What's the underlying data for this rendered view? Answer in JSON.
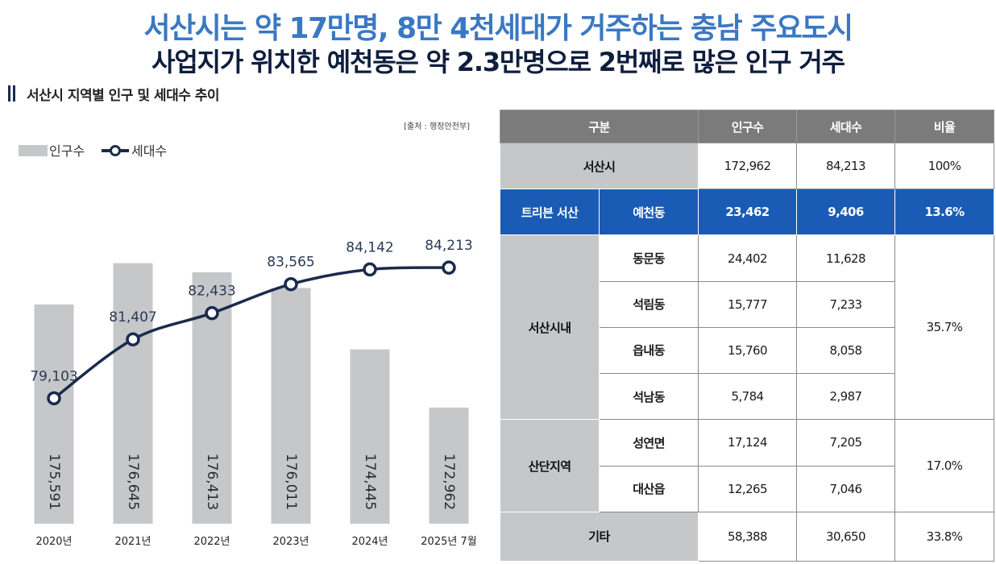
{
  "headline": {
    "line1": "서산시는 약 17만명, 8만 4천세대가 거주하는 충남 주요도시",
    "line2": "사업지가 위치한 예천동은 약 2.3만명으로 2번째로 많은 인구 거주"
  },
  "section_title": "서산시 지역별 인구 및 세대수 추이",
  "source_note": "[출처 : 행정안전부]",
  "colors": {
    "bar": "#c6c7c9",
    "line": "#1b2a4e",
    "headline_blue": "#3a78c3",
    "highlight": "#1a5cb5"
  },
  "chart_data": {
    "type": "bar",
    "categories": [
      "2020년",
      "2021년",
      "2022년",
      "2023년",
      "2024년",
      "2025년 7월"
    ],
    "series": [
      {
        "name": "인구수",
        "type": "bar",
        "values": [
          175591,
          176645,
          176413,
          176011,
          174445,
          172962
        ]
      },
      {
        "name": "세대수",
        "type": "line",
        "values": [
          79103,
          81407,
          82433,
          83565,
          84142,
          84213
        ]
      }
    ],
    "bar_labels": [
      "175,591",
      "176,645",
      "176,413",
      "176,011",
      "174,445",
      "172,962"
    ],
    "line_labels": [
      "79,103",
      "81,407",
      "82,433",
      "83,565",
      "84,142",
      "84,213"
    ],
    "legend": [
      "인구수",
      "세대수"
    ],
    "legend_position": "top-left",
    "bar_ylim": [
      170000,
      177500
    ],
    "line_ylim": [
      74200,
      86800
    ],
    "grid": false
  },
  "table": {
    "headers": [
      "구분",
      "인구수",
      "세대수",
      "비율"
    ],
    "rows": {
      "seosan": {
        "label": "서산시",
        "pop": "172,962",
        "hh": "84,213",
        "ratio": "100%"
      },
      "highlight": {
        "group": "트리븐 서산",
        "label": "예천동",
        "pop": "23,462",
        "hh": "9,406",
        "ratio": "13.6%"
      },
      "inner": {
        "group": "서산시내",
        "ratio": "35.7%",
        "items": [
          {
            "label": "동문동",
            "pop": "24,402",
            "hh": "11,628"
          },
          {
            "label": "석림동",
            "pop": "15,777",
            "hh": "7,233"
          },
          {
            "label": "읍내동",
            "pop": "15,760",
            "hh": "8,058"
          },
          {
            "label": "석남동",
            "pop": "5,784",
            "hh": "2,987"
          }
        ]
      },
      "industrial": {
        "group": "산단지역",
        "ratio": "17.0%",
        "items": [
          {
            "label": "성연면",
            "pop": "17,124",
            "hh": "7,205"
          },
          {
            "label": "대산읍",
            "pop": "12,265",
            "hh": "7,046"
          }
        ]
      },
      "other": {
        "label": "기타",
        "pop": "58,388",
        "hh": "30,650",
        "ratio": "33.8%"
      }
    }
  }
}
